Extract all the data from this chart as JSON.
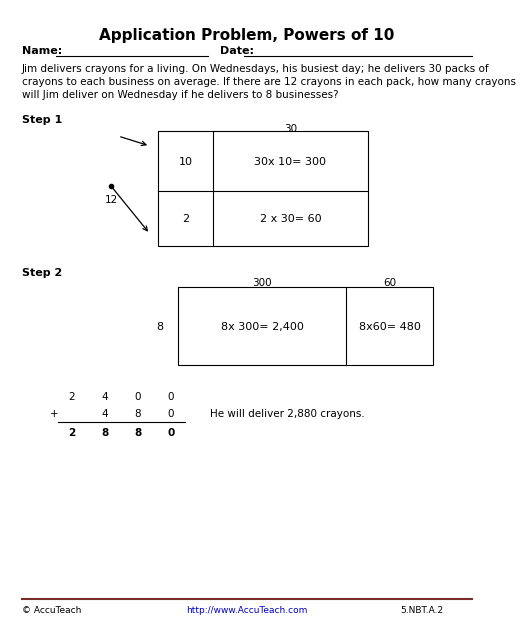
{
  "title": "Application Problem, Powers of 10",
  "name_label": "Name:",
  "date_label": "Date:",
  "problem_text": "Jim delivers crayons for a living. On Wednesdays, his busiest day; he delivers 30 packs of\ncrayons to each business on average. If there are 12 crayons in each pack, how many crayons\nwill Jim deliver on Wednesday if he delivers to 8 businesses?",
  "step1_label": "Step 1",
  "step2_label": "Step 2",
  "step1_top_label": "30",
  "step1_left_label": "12",
  "step1_row1_side": "10",
  "step1_row2_side": "2",
  "step1_cell1": "30x 10= 300",
  "step1_cell2": "2 x 30= 60",
  "step2_col1_label": "300",
  "step2_col2_label": "60",
  "step2_row_label": "8",
  "step2_cell1": "8x 300= 2,400",
  "step2_cell2": "8x60= 480",
  "addition_row1": [
    "2",
    "4",
    "0",
    "0"
  ],
  "addition_row2": [
    "4",
    "8",
    "0"
  ],
  "addition_row3": [
    "2",
    "8",
    "8",
    "0"
  ],
  "answer_text": "He will deliver 2,880 crayons.",
  "footer_left": "© AccuTeach",
  "footer_url": "http://www.AccuTeach.com",
  "footer_standard": "5.NBT.A.2",
  "footer_line_color": "#7B2D2D",
  "bg_color": "#ffffff",
  "text_color": "#000000"
}
